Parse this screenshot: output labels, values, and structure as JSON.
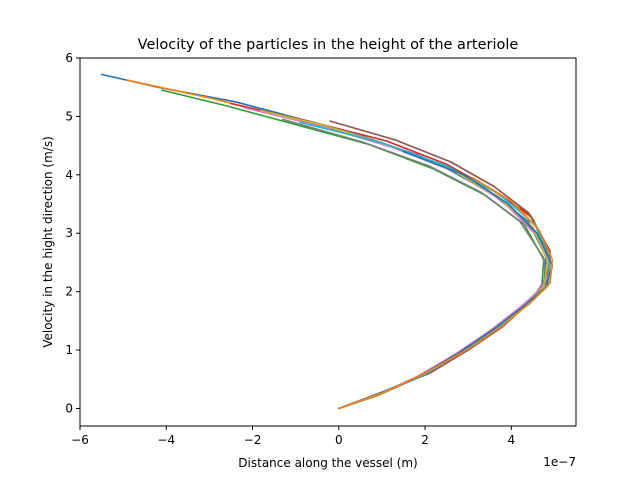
{
  "chart_data": {
    "type": "line",
    "title": "Velocity of the particles in the height of the arteriole",
    "xlabel": "Distance along the vessel (m)",
    "ylabel": "Velocity in the hight direction (m/s)",
    "x_offset_text": "1e−7",
    "xlim": [
      -6.0,
      5.5
    ],
    "ylim": [
      -0.3,
      6.0
    ],
    "xticks": [
      -6,
      -4,
      -2,
      0,
      2,
      4
    ],
    "xtick_labels": [
      "−6",
      "−4",
      "−2",
      "0",
      "2",
      "4"
    ],
    "yticks": [
      0,
      1,
      2,
      3,
      4,
      5,
      6
    ],
    "ytick_labels": [
      "0",
      "1",
      "2",
      "3",
      "4",
      "5",
      "6"
    ],
    "grid": false,
    "x_scale_note": "x values are in units of 1e-7 m",
    "palette": [
      "#1f77b4",
      "#ff7f0e",
      "#2ca02c",
      "#d62728",
      "#9467bd",
      "#8c564b",
      "#e377c2",
      "#7f7f7f",
      "#bcbd22",
      "#17becf"
    ],
    "series": [
      {
        "x": [
          0,
          0.9,
          1.9,
          2.8,
          3.6,
          4.3,
          4.75,
          4.8,
          4.4,
          3.5,
          2.4,
          1.0,
          -0.6,
          -2.4,
          -4.2,
          -5.5
        ],
        "y": [
          0,
          0.25,
          0.55,
          0.95,
          1.35,
          1.75,
          2.05,
          2.6,
          3.2,
          3.7,
          4.15,
          4.55,
          4.9,
          5.25,
          5.5,
          5.72
        ]
      },
      {
        "x": [
          0,
          1.0,
          2.0,
          2.9,
          3.7,
          4.35,
          4.8,
          4.9,
          4.5,
          3.6,
          2.3,
          0.8,
          -1.0,
          -2.9,
          -4.9
        ],
        "y": [
          0,
          0.27,
          0.58,
          0.97,
          1.37,
          1.78,
          2.1,
          2.62,
          3.25,
          3.72,
          4.2,
          4.6,
          4.95,
          5.3,
          5.62
        ]
      },
      {
        "x": [
          0,
          0.9,
          1.8,
          2.7,
          3.5,
          4.2,
          4.7,
          4.75,
          4.3,
          3.4,
          2.2,
          0.7,
          -1.1,
          -2.6,
          -4.1
        ],
        "y": [
          0,
          0.22,
          0.52,
          0.92,
          1.32,
          1.72,
          2.02,
          2.55,
          3.15,
          3.65,
          4.1,
          4.52,
          4.88,
          5.18,
          5.45
        ]
      },
      {
        "x": [
          0,
          1.0,
          1.9,
          2.8,
          3.6,
          4.3,
          4.8,
          4.85,
          4.45,
          3.55,
          2.5,
          1.1,
          -0.7,
          -2.5
        ],
        "y": [
          0,
          0.26,
          0.57,
          0.96,
          1.36,
          1.76,
          2.06,
          2.68,
          3.3,
          3.75,
          4.18,
          4.58,
          4.92,
          5.22
        ]
      },
      {
        "x": [
          0,
          0.8,
          1.7,
          2.6,
          3.4,
          4.1,
          4.6,
          4.9,
          4.7,
          4.0,
          3.0,
          1.8,
          0.3,
          -1.5
        ],
        "y": [
          0,
          0.2,
          0.48,
          0.85,
          1.25,
          1.65,
          2.0,
          2.35,
          2.9,
          3.45,
          3.95,
          4.35,
          4.72,
          5.05
        ]
      },
      {
        "x": [
          0,
          1.0,
          2.1,
          3.0,
          3.8,
          4.4,
          4.85,
          4.9,
          4.4,
          3.6,
          2.6,
          1.3,
          -0.2
        ],
        "y": [
          0,
          0.28,
          0.6,
          1.0,
          1.4,
          1.8,
          2.12,
          2.7,
          3.35,
          3.8,
          4.22,
          4.6,
          4.92
        ]
      },
      {
        "x": [
          0,
          0.9,
          1.8,
          2.7,
          3.5,
          4.2,
          4.7,
          4.95,
          4.6,
          3.8,
          2.7,
          1.2,
          -0.5,
          -2.2
        ],
        "y": [
          0,
          0.24,
          0.54,
          0.93,
          1.33,
          1.73,
          2.05,
          2.4,
          2.95,
          3.55,
          4.05,
          4.48,
          4.85,
          5.15
        ]
      },
      {
        "x": [
          0,
          1.1,
          2.0,
          2.9,
          3.7,
          4.4,
          4.8,
          4.75,
          4.2,
          3.3,
          2.1,
          0.6,
          -1.3
        ],
        "y": [
          0,
          0.3,
          0.6,
          0.98,
          1.38,
          1.8,
          2.1,
          2.58,
          3.2,
          3.7,
          4.15,
          4.55,
          4.95
        ]
      },
      {
        "x": [
          0,
          0.9,
          1.9,
          2.8,
          3.6,
          4.3,
          4.75,
          4.85,
          4.5,
          3.7,
          2.6,
          1.2,
          -0.4,
          -1.8
        ],
        "y": [
          0,
          0.23,
          0.56,
          0.95,
          1.35,
          1.75,
          2.08,
          2.5,
          3.1,
          3.62,
          4.1,
          4.5,
          4.86,
          5.1
        ]
      },
      {
        "x": [
          0,
          1.0,
          2.0,
          2.9,
          3.7,
          4.4,
          4.85,
          4.9,
          4.55,
          3.7,
          2.5,
          1.0,
          -0.9
        ],
        "y": [
          0,
          0.27,
          0.58,
          0.98,
          1.38,
          1.78,
          2.1,
          2.55,
          3.15,
          3.68,
          4.15,
          4.55,
          4.9
        ]
      },
      {
        "x": [
          0,
          0.95,
          1.9,
          2.8,
          3.6,
          4.3,
          4.8,
          4.95,
          4.6,
          3.9,
          2.9,
          1.5
        ],
        "y": [
          0,
          0.25,
          0.56,
          0.96,
          1.36,
          1.76,
          2.08,
          2.45,
          3.0,
          3.52,
          4.0,
          4.4
        ]
      },
      {
        "x": [
          0,
          1.0,
          2.0,
          3.0,
          3.8,
          4.5,
          4.9,
          4.95,
          4.65,
          4.0,
          3.1
        ],
        "y": [
          0,
          0.26,
          0.6,
          1.02,
          1.42,
          1.85,
          2.15,
          2.55,
          3.05,
          3.55,
          3.95
        ]
      }
    ]
  }
}
